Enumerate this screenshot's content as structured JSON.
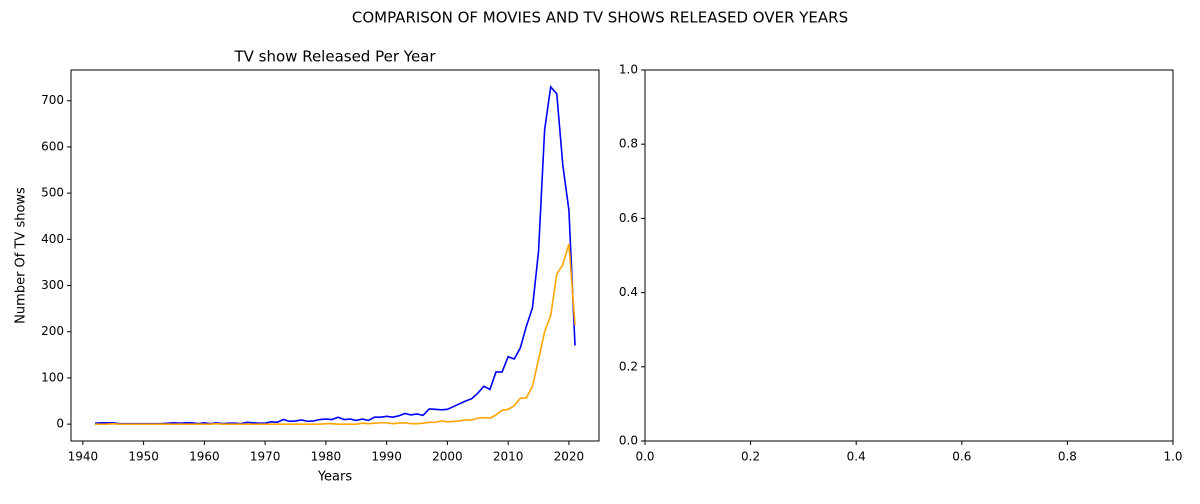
{
  "suptitle": "COMPARISON OF MOVIES AND TV SHOWS RELEASED OVER YEARS",
  "chart_data": [
    {
      "type": "line",
      "title": "TV show Released Per Year",
      "x_label": "Years",
      "y_label": "Number Of TV shows",
      "x": [
        1942,
        1943,
        1944,
        1945,
        1946,
        1947,
        1948,
        1949,
        1950,
        1951,
        1952,
        1953,
        1954,
        1955,
        1956,
        1957,
        1958,
        1959,
        1960,
        1961,
        1962,
        1963,
        1964,
        1965,
        1966,
        1967,
        1968,
        1969,
        1970,
        1971,
        1972,
        1973,
        1974,
        1975,
        1976,
        1977,
        1978,
        1979,
        1980,
        1981,
        1982,
        1983,
        1984,
        1985,
        1986,
        1987,
        1988,
        1989,
        1990,
        1991,
        1992,
        1993,
        1994,
        1995,
        1996,
        1997,
        1998,
        1999,
        2000,
        2001,
        2002,
        2003,
        2004,
        2005,
        2006,
        2007,
        2008,
        2009,
        2010,
        2011,
        2012,
        2013,
        2014,
        2015,
        2016,
        2017,
        2018,
        2019,
        2020,
        2021
      ],
      "series": [
        {
          "color": "#0000ff",
          "values": [
            2,
            3,
            3,
            3,
            1,
            1,
            1,
            1,
            1,
            1,
            1,
            1,
            2,
            3,
            2,
            3,
            3,
            1,
            3,
            1,
            3,
            1,
            2,
            2,
            1,
            4,
            3,
            2,
            2,
            5,
            4,
            10,
            6,
            7,
            9,
            6,
            7,
            10,
            11,
            10,
            15,
            10,
            11,
            8,
            11,
            8,
            15,
            15,
            17,
            15,
            18,
            23,
            20,
            22,
            19,
            33,
            32,
            31,
            32,
            38,
            44,
            50,
            55,
            67,
            82,
            75,
            113,
            113,
            146,
            141,
            165,
            212,
            252,
            374,
            637,
            730,
            715,
            560,
            463,
            170
          ]
        },
        {
          "color": "#ffa500",
          "values": [
            0,
            0,
            0,
            1,
            0,
            0,
            0,
            0,
            0,
            0,
            0,
            0,
            0,
            0,
            0,
            0,
            0,
            0,
            0,
            0,
            1,
            0,
            0,
            0,
            0,
            0,
            0,
            0,
            0,
            0,
            0,
            0,
            0,
            0,
            0,
            0,
            0,
            0,
            1,
            1,
            0,
            0,
            0,
            0,
            2,
            1,
            2,
            3,
            3,
            1,
            2,
            3,
            1,
            1,
            2,
            4,
            4,
            7,
            5,
            6,
            7,
            9,
            9,
            13,
            14,
            13,
            20,
            30,
            32,
            40,
            56,
            57,
            82,
            140,
            200,
            235,
            325,
            345,
            390,
            215
          ]
        }
      ],
      "xlim": [
        1938.05,
        2024.95
      ],
      "xticks": [
        1940,
        1950,
        1960,
        1970,
        1980,
        1990,
        2000,
        2010,
        2020
      ],
      "ylim": [
        -36.5,
        766.5
      ],
      "yticks": [
        0,
        100,
        200,
        300,
        400,
        500,
        600,
        700
      ]
    },
    {
      "type": "empty",
      "xlim": [
        0,
        1
      ],
      "xticks": [
        {
          "value": 0,
          "label": "0.0"
        },
        {
          "value": 0.2,
          "label": "0.2"
        },
        {
          "value": 0.4,
          "label": "0.4"
        },
        {
          "value": 0.6,
          "label": "0.6"
        },
        {
          "value": 0.8,
          "label": "0.8"
        },
        {
          "value": 1,
          "label": "1.0"
        }
      ],
      "ylim": [
        0,
        1
      ],
      "yticks": [
        {
          "value": 0,
          "label": "0.0"
        },
        {
          "value": 0.2,
          "label": "0.2"
        },
        {
          "value": 0.4,
          "label": "0.4"
        },
        {
          "value": 0.6,
          "label": "0.6"
        },
        {
          "value": 0.8,
          "label": "0.8"
        },
        {
          "value": 1,
          "label": "1.0"
        }
      ]
    }
  ]
}
